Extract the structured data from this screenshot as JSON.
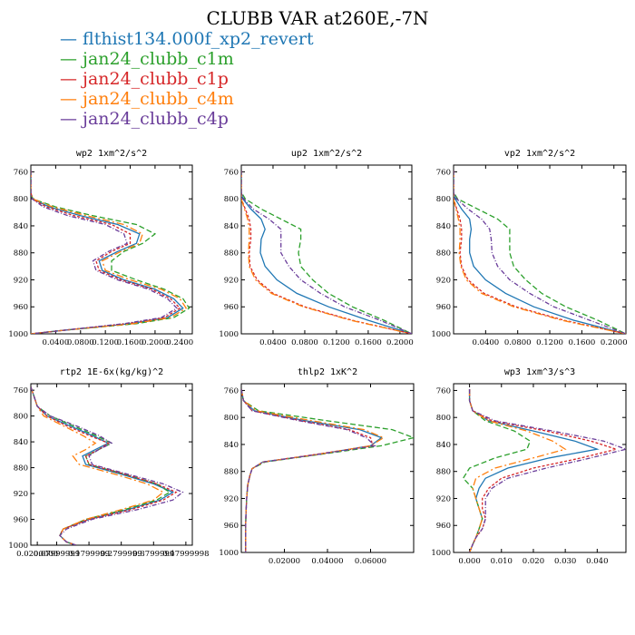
{
  "title": "CLUBB VAR at260E,-7N",
  "legend": [
    {
      "label": "flthist134.000f_xp2_revert",
      "color": "#1f77b4"
    },
    {
      "label": "jan24_clubb_c1m",
      "color": "#2ca02c"
    },
    {
      "label": "jan24_clubb_c1p",
      "color": "#d62728"
    },
    {
      "label": "jan24_clubb_c4m",
      "color": "#ff7f0e"
    },
    {
      "label": "jan24_clubb_c4p",
      "color": "#6a3d9a"
    }
  ],
  "chart_data": [
    {
      "type": "line",
      "title": "wp2   1xm^2/s^2",
      "xlabel": "",
      "ylabel": "",
      "xlim": [
        0,
        0.26
      ],
      "ylim": [
        1000,
        750
      ],
      "y_inverted": true,
      "xticks": [
        0.04,
        0.08,
        0.12,
        0.16,
        0.2,
        0.24
      ],
      "xtick_labels": [
        "0.0400",
        "0.0800",
        "0.1200",
        "0.1600",
        "0.2000",
        "0.2400"
      ],
      "yticks": [
        760,
        800,
        840,
        880,
        920,
        960,
        1000
      ],
      "y": [
        758,
        790,
        800,
        812,
        825,
        838,
        852,
        866,
        878,
        892,
        906,
        920,
        934,
        948,
        962,
        976,
        985,
        995,
        1000
      ],
      "series": [
        {
          "name": "flthist134.000f_xp2_revert",
          "x": [
            0.0,
            0.0,
            0.002,
            0.03,
            0.08,
            0.14,
            0.175,
            0.17,
            0.14,
            0.11,
            0.115,
            0.15,
            0.2,
            0.23,
            0.245,
            0.22,
            0.16,
            0.05,
            0.0
          ]
        },
        {
          "name": "jan24_clubb_c1m",
          "x": [
            0.0,
            0.0,
            0.003,
            0.04,
            0.1,
            0.17,
            0.2,
            0.18,
            0.15,
            0.13,
            0.13,
            0.17,
            0.215,
            0.245,
            0.255,
            0.23,
            0.17,
            0.05,
            0.0
          ]
        },
        {
          "name": "jan24_clubb_c1p",
          "x": [
            0.0,
            0.0,
            0.002,
            0.025,
            0.07,
            0.13,
            0.16,
            0.16,
            0.13,
            0.105,
            0.11,
            0.145,
            0.195,
            0.225,
            0.24,
            0.215,
            0.155,
            0.05,
            0.0
          ]
        },
        {
          "name": "jan24_clubb_c4m",
          "x": [
            0.0,
            0.0,
            0.003,
            0.035,
            0.09,
            0.15,
            0.18,
            0.175,
            0.145,
            0.115,
            0.12,
            0.16,
            0.21,
            0.24,
            0.25,
            0.225,
            0.165,
            0.05,
            0.0
          ]
        },
        {
          "name": "jan24_clubb_c4p",
          "x": [
            0.0,
            0.0,
            0.002,
            0.02,
            0.06,
            0.12,
            0.15,
            0.155,
            0.125,
            0.1,
            0.105,
            0.14,
            0.19,
            0.22,
            0.235,
            0.21,
            0.15,
            0.05,
            0.0
          ]
        }
      ]
    },
    {
      "type": "line",
      "title": "up2   1xm^2/s^2",
      "xlabel": "",
      "ylabel": "",
      "xlim": [
        0,
        0.215
      ],
      "ylim": [
        1000,
        750
      ],
      "y_inverted": true,
      "xticks": [
        0.04,
        0.08,
        0.12,
        0.16,
        0.2
      ],
      "xtick_labels": [
        "0.0400",
        "0.0800",
        "0.1200",
        "0.1600",
        "0.2000"
      ],
      "yticks": [
        760,
        800,
        840,
        880,
        920,
        960,
        1000
      ],
      "y": [
        758,
        790,
        800,
        815,
        830,
        845,
        860,
        880,
        900,
        920,
        940,
        960,
        980,
        1000
      ],
      "series": [
        {
          "name": "flthist134.000f_xp2_revert",
          "x": [
            0.0,
            0.0,
            0.002,
            0.012,
            0.025,
            0.03,
            0.025,
            0.024,
            0.03,
            0.045,
            0.07,
            0.11,
            0.16,
            0.215
          ]
        },
        {
          "name": "jan24_clubb_c1m",
          "x": [
            0.0,
            0.0,
            0.005,
            0.025,
            0.05,
            0.075,
            0.075,
            0.072,
            0.075,
            0.09,
            0.11,
            0.14,
            0.18,
            0.215
          ]
        },
        {
          "name": "jan24_clubb_c1p",
          "x": [
            0.0,
            0.0,
            0.0,
            0.005,
            0.01,
            0.012,
            0.012,
            0.01,
            0.011,
            0.02,
            0.04,
            0.08,
            0.14,
            0.215
          ]
        },
        {
          "name": "jan24_clubb_c4m",
          "x": [
            0.0,
            0.0,
            0.0,
            0.004,
            0.008,
            0.01,
            0.01,
            0.009,
            0.01,
            0.018,
            0.038,
            0.078,
            0.138,
            0.215
          ]
        },
        {
          "name": "jan24_clubb_c4p",
          "x": [
            0.0,
            0.0,
            0.003,
            0.015,
            0.035,
            0.05,
            0.05,
            0.05,
            0.06,
            0.075,
            0.1,
            0.13,
            0.175,
            0.215
          ]
        }
      ]
    },
    {
      "type": "line",
      "title": "vp2   1xm^2/s^2",
      "xlabel": "",
      "ylabel": "",
      "xlim": [
        0,
        0.215
      ],
      "ylim": [
        1000,
        750
      ],
      "y_inverted": true,
      "xticks": [
        0.04,
        0.08,
        0.12,
        0.16,
        0.2
      ],
      "xtick_labels": [
        "0.0400",
        "0.0800",
        "0.1200",
        "0.1600",
        "0.2000"
      ],
      "yticks": [
        760,
        800,
        840,
        880,
        920,
        960,
        1000
      ],
      "y": [
        758,
        790,
        800,
        815,
        830,
        845,
        860,
        880,
        900,
        920,
        940,
        960,
        980,
        1000
      ],
      "series": [
        {
          "name": "flthist134.000f_xp2_revert",
          "x": [
            0.0,
            0.0,
            0.002,
            0.01,
            0.02,
            0.022,
            0.02,
            0.02,
            0.025,
            0.04,
            0.065,
            0.1,
            0.15,
            0.215
          ]
        },
        {
          "name": "jan24_clubb_c1m",
          "x": [
            0.0,
            0.0,
            0.005,
            0.03,
            0.055,
            0.07,
            0.07,
            0.07,
            0.075,
            0.09,
            0.11,
            0.14,
            0.18,
            0.215
          ]
        },
        {
          "name": "jan24_clubb_c1p",
          "x": [
            0.0,
            0.0,
            0.0,
            0.004,
            0.008,
            0.01,
            0.01,
            0.008,
            0.01,
            0.018,
            0.038,
            0.078,
            0.138,
            0.215
          ]
        },
        {
          "name": "jan24_clubb_c4m",
          "x": [
            0.0,
            0.0,
            0.0,
            0.003,
            0.006,
            0.008,
            0.008,
            0.007,
            0.009,
            0.016,
            0.035,
            0.075,
            0.135,
            0.215
          ]
        },
        {
          "name": "jan24_clubb_c4p",
          "x": [
            0.0,
            0.0,
            0.004,
            0.018,
            0.035,
            0.045,
            0.047,
            0.048,
            0.055,
            0.07,
            0.095,
            0.125,
            0.17,
            0.215
          ]
        }
      ]
    },
    {
      "type": "line",
      "title": "rtp2   1E-6x(kg/kg)^2",
      "xlabel": "",
      "ylabel": "",
      "xlim": [
        0,
        0.5
      ],
      "ylim": [
        1000,
        750
      ],
      "y_inverted": true,
      "xticks": [
        0.02,
        0.08,
        0.18,
        0.28,
        0.38,
        0.48
      ],
      "xtick_labels": [
        "0.0200000",
        "0.07999999",
        "0.1799999",
        "0.2799999",
        "0.3799999",
        "0.47999998"
      ],
      "yticks": [
        760,
        800,
        840,
        880,
        920,
        960,
        1000
      ],
      "y": [
        755,
        770,
        785,
        800,
        815,
        830,
        842,
        852,
        862,
        875,
        890,
        905,
        918,
        930,
        945,
        960,
        975,
        985,
        995,
        1000
      ],
      "series": [
        {
          "name": "flthist134.000f_xp2_revert",
          "x": [
            0.0,
            0.01,
            0.02,
            0.05,
            0.12,
            0.19,
            0.24,
            0.2,
            0.16,
            0.17,
            0.28,
            0.38,
            0.44,
            0.4,
            0.3,
            0.18,
            0.1,
            0.09,
            0.11,
            0.14
          ]
        },
        {
          "name": "jan24_clubb_c1m",
          "x": [
            0.0,
            0.01,
            0.02,
            0.06,
            0.13,
            0.2,
            0.25,
            0.21,
            0.17,
            0.18,
            0.29,
            0.39,
            0.43,
            0.39,
            0.29,
            0.17,
            0.1,
            0.09,
            0.11,
            0.14
          ]
        },
        {
          "name": "jan24_clubb_c1p",
          "x": [
            0.0,
            0.01,
            0.02,
            0.05,
            0.11,
            0.18,
            0.24,
            0.21,
            0.17,
            0.18,
            0.29,
            0.39,
            0.45,
            0.41,
            0.31,
            0.18,
            0.1,
            0.09,
            0.11,
            0.14
          ]
        },
        {
          "name": "jan24_clubb_c4m",
          "x": [
            0.0,
            0.01,
            0.02,
            0.04,
            0.1,
            0.16,
            0.2,
            0.17,
            0.13,
            0.15,
            0.26,
            0.36,
            0.41,
            0.38,
            0.28,
            0.17,
            0.1,
            0.09,
            0.11,
            0.14
          ]
        },
        {
          "name": "jan24_clubb_c4p",
          "x": [
            0.0,
            0.01,
            0.02,
            0.06,
            0.14,
            0.21,
            0.25,
            0.21,
            0.18,
            0.19,
            0.3,
            0.41,
            0.47,
            0.44,
            0.33,
            0.19,
            0.11,
            0.09,
            0.11,
            0.14
          ]
        }
      ]
    },
    {
      "type": "line",
      "title": "thlp2   1xK^2",
      "xlabel": "",
      "ylabel": "",
      "xlim": [
        0,
        0.08
      ],
      "ylim": [
        1000,
        750
      ],
      "y_inverted": true,
      "xticks": [
        0.02,
        0.04,
        0.06
      ],
      "xtick_labels": [
        "0.02000",
        "0.04000",
        "0.06000"
      ],
      "yticks": [
        760,
        800,
        840,
        880,
        920,
        960,
        1000
      ],
      "y": [
        758,
        775,
        790,
        805,
        818,
        830,
        842,
        855,
        866,
        876,
        886,
        900,
        920,
        940,
        960,
        980,
        1000
      ],
      "series": [
        {
          "name": "flthist134.000f_xp2_revert",
          "x": [
            0.0,
            0.001,
            0.006,
            0.03,
            0.055,
            0.065,
            0.06,
            0.035,
            0.01,
            0.005,
            0.004,
            0.003,
            0.0025,
            0.0022,
            0.002,
            0.002,
            0.002
          ]
        },
        {
          "name": "jan24_clubb_c1m",
          "x": [
            0.0,
            0.001,
            0.008,
            0.04,
            0.07,
            0.08,
            0.065,
            0.036,
            0.011,
            0.005,
            0.004,
            0.003,
            0.0025,
            0.0022,
            0.002,
            0.002,
            0.002
          ]
        },
        {
          "name": "jan24_clubb_c1p",
          "x": [
            0.0,
            0.001,
            0.005,
            0.028,
            0.05,
            0.06,
            0.061,
            0.034,
            0.01,
            0.005,
            0.004,
            0.003,
            0.0025,
            0.0022,
            0.002,
            0.002,
            0.002
          ]
        },
        {
          "name": "jan24_clubb_c4m",
          "x": [
            0.0,
            0.001,
            0.007,
            0.033,
            0.057,
            0.066,
            0.06,
            0.035,
            0.01,
            0.005,
            0.004,
            0.003,
            0.0025,
            0.0022,
            0.002,
            0.002,
            0.002
          ]
        },
        {
          "name": "jan24_clubb_c4p",
          "x": [
            0.0,
            0.001,
            0.005,
            0.027,
            0.049,
            0.058,
            0.062,
            0.035,
            0.01,
            0.005,
            0.004,
            0.003,
            0.0025,
            0.0022,
            0.002,
            0.002,
            0.002
          ]
        }
      ]
    },
    {
      "type": "line",
      "title": "wp3   1xm^3/s^3",
      "xlabel": "",
      "ylabel": "",
      "xlim": [
        -0.005,
        0.049
      ],
      "ylim": [
        1000,
        750
      ],
      "y_inverted": true,
      "xticks": [
        0.0,
        0.01,
        0.02,
        0.03,
        0.04
      ],
      "xtick_labels": [
        "0.000",
        "0.010",
        "0.020",
        "0.030",
        "0.040"
      ],
      "yticks": [
        760,
        800,
        840,
        880,
        920,
        960,
        1000
      ],
      "y": [
        758,
        775,
        790,
        805,
        820,
        835,
        847,
        860,
        875,
        890,
        905,
        920,
        935,
        950,
        965,
        978,
        988,
        1000
      ],
      "series": [
        {
          "name": "flthist134.000f_xp2_revert",
          "x": [
            0.0,
            0.0,
            0.001,
            0.006,
            0.02,
            0.033,
            0.04,
            0.025,
            0.012,
            0.005,
            0.003,
            0.002,
            0.003,
            0.004,
            0.003,
            0.002,
            0.001,
            0.0
          ]
        },
        {
          "name": "jan24_clubb_c1m",
          "x": [
            0.0,
            0.0,
            0.001,
            0.005,
            0.014,
            0.019,
            0.018,
            0.008,
            0.0,
            -0.002,
            0.001,
            0.002,
            0.003,
            0.004,
            0.003,
            0.002,
            0.001,
            0.0
          ]
        },
        {
          "name": "jan24_clubb_c1p",
          "x": [
            0.0,
            0.0,
            0.001,
            0.007,
            0.024,
            0.038,
            0.046,
            0.035,
            0.02,
            0.01,
            0.006,
            0.004,
            0.004,
            0.005,
            0.004,
            0.002,
            0.001,
            0.0
          ]
        },
        {
          "name": "jan24_clubb_c4m",
          "x": [
            0.0,
            0.0,
            0.001,
            0.006,
            0.018,
            0.026,
            0.03,
            0.02,
            0.008,
            0.002,
            0.001,
            0.002,
            0.003,
            0.004,
            0.003,
            0.002,
            0.001,
            0.0
          ]
        },
        {
          "name": "jan24_clubb_c4p",
          "x": [
            0.0,
            0.0,
            0.001,
            0.008,
            0.026,
            0.042,
            0.049,
            0.038,
            0.024,
            0.012,
            0.007,
            0.005,
            0.005,
            0.005,
            0.004,
            0.002,
            0.001,
            0.0
          ]
        }
      ]
    }
  ]
}
